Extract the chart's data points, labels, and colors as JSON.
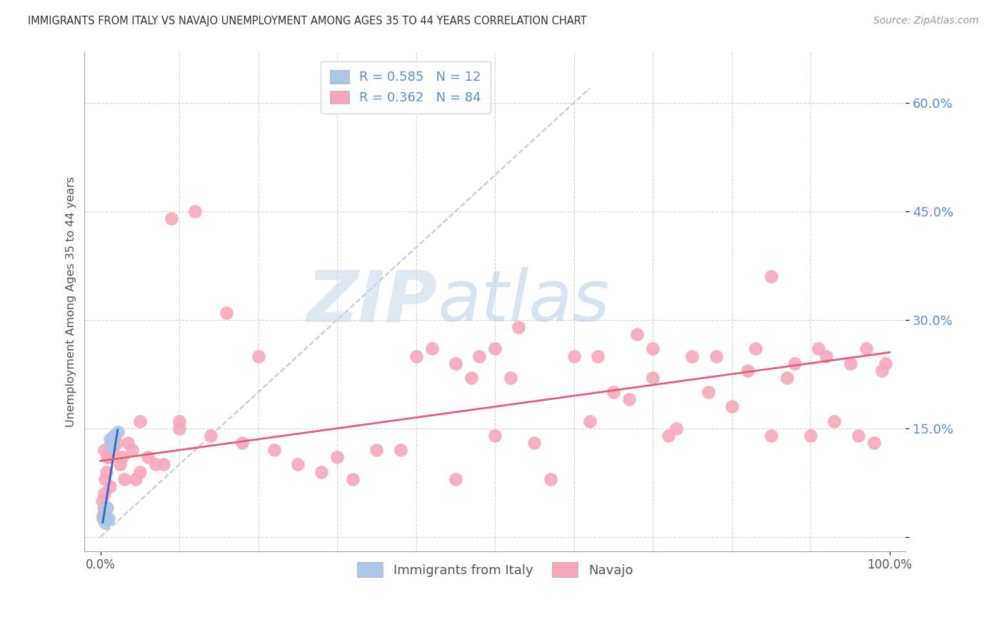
{
  "title": "IMMIGRANTS FROM ITALY VS NAVAJO UNEMPLOYMENT AMONG AGES 35 TO 44 YEARS CORRELATION CHART",
  "source": "Source: ZipAtlas.com",
  "ylabel": "Unemployment Among Ages 35 to 44 years",
  "legend_italy_r": "0.585",
  "legend_italy_n": "12",
  "legend_navajo_r": "0.362",
  "legend_navajo_n": "84",
  "italy_color": "#adc6e8",
  "navajo_color": "#f5a8bc",
  "italy_line_color": "#3a64b8",
  "navajo_line_color": "#e0607a",
  "diagonal_color": "#b8c4d8",
  "watermark_zip": "ZIP",
  "watermark_atlas": "atlas",
  "italy_x": [
    0.3,
    0.5,
    0.6,
    0.7,
    0.8,
    0.9,
    1.0,
    1.2,
    1.4,
    1.6,
    1.8,
    2.2
  ],
  "italy_y": [
    2.5,
    3.5,
    2.0,
    4.0,
    2.5,
    4.0,
    2.5,
    13.5,
    12.5,
    13.0,
    14.0,
    14.5
  ],
  "navajo_x": [
    0.2,
    0.3,
    0.4,
    0.5,
    0.6,
    0.7,
    0.8,
    0.9,
    1.0,
    1.2,
    1.4,
    1.6,
    1.8,
    2.0,
    2.5,
    3.0,
    3.5,
    4.0,
    5.0,
    6.0,
    7.0,
    8.0,
    9.0,
    10.0,
    12.0,
    14.0,
    16.0,
    18.0,
    20.0,
    22.0,
    25.0,
    28.0,
    30.0,
    32.0,
    35.0,
    38.0,
    40.0,
    42.0,
    45.0,
    47.0,
    48.0,
    50.0,
    52.0,
    53.0,
    55.0,
    57.0,
    60.0,
    62.0,
    63.0,
    65.0,
    67.0,
    68.0,
    70.0,
    72.0,
    73.0,
    75.0,
    77.0,
    78.0,
    80.0,
    82.0,
    83.0,
    85.0,
    87.0,
    88.0,
    90.0,
    91.0,
    92.0,
    93.0,
    95.0,
    96.0,
    97.0,
    98.0,
    99.0,
    99.5,
    10.0,
    50.0,
    70.0,
    85.0,
    45.0,
    5.0,
    0.5,
    1.5,
    2.8,
    4.5
  ],
  "navajo_y": [
    5.0,
    3.0,
    4.0,
    6.0,
    8.0,
    4.0,
    9.0,
    11.0,
    11.0,
    7.0,
    13.0,
    12.0,
    14.0,
    13.0,
    10.0,
    8.0,
    13.0,
    12.0,
    9.0,
    11.0,
    10.0,
    10.0,
    44.0,
    15.0,
    45.0,
    14.0,
    31.0,
    13.0,
    25.0,
    12.0,
    10.0,
    9.0,
    11.0,
    8.0,
    12.0,
    12.0,
    25.0,
    26.0,
    8.0,
    22.0,
    25.0,
    14.0,
    22.0,
    29.0,
    13.0,
    8.0,
    25.0,
    16.0,
    25.0,
    20.0,
    19.0,
    28.0,
    22.0,
    14.0,
    15.0,
    25.0,
    20.0,
    25.0,
    18.0,
    23.0,
    26.0,
    14.0,
    22.0,
    24.0,
    14.0,
    26.0,
    25.0,
    16.0,
    24.0,
    14.0,
    26.0,
    13.0,
    23.0,
    24.0,
    16.0,
    26.0,
    26.0,
    36.0,
    24.0,
    16.0,
    12.0,
    13.0,
    11.0,
    8.0
  ],
  "xlim": [
    -2,
    102
  ],
  "ylim": [
    -2,
    67
  ],
  "navajo_line_x0": 0,
  "navajo_line_y0": 10.5,
  "navajo_line_x1": 100,
  "navajo_line_y1": 25.5,
  "italy_line_x0": 0.3,
  "italy_line_y0": 2.0,
  "italy_line_x1": 2.2,
  "italy_line_y1": 14.8,
  "diag_x0": 0,
  "diag_y0": 0,
  "diag_x1": 62,
  "diag_y1": 62
}
